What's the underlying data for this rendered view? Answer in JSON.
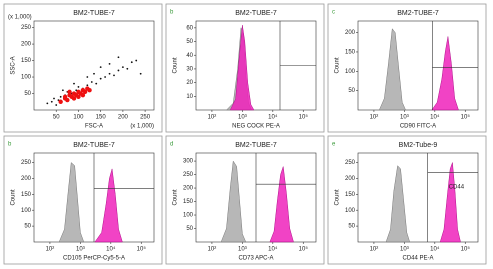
{
  "chart_data": [
    {
      "type": "scatter",
      "title": "BM2-TUBE-7",
      "xlabel": "FSC-A",
      "ylabel": "SSC-A",
      "x_note": "(x 1,000)",
      "y_note": "(x 1,000)",
      "xlim": [
        0,
        270
      ],
      "ylim": [
        0,
        270
      ],
      "xticks": [
        50,
        100,
        150,
        200,
        250
      ],
      "yticks": [
        50,
        100,
        150,
        200,
        250
      ],
      "series": [
        {
          "name": "events",
          "color": "#111111",
          "x": [
            30,
            40,
            45,
            55,
            60,
            70,
            75,
            85,
            95,
            100,
            110,
            120,
            130,
            140,
            150,
            160,
            170,
            180,
            190,
            200,
            210,
            220,
            230,
            150,
            170,
            120,
            135,
            90,
            65,
            50,
            190,
            240
          ],
          "y": [
            20,
            25,
            35,
            30,
            40,
            45,
            55,
            50,
            60,
            70,
            65,
            75,
            85,
            80,
            95,
            100,
            110,
            105,
            120,
            130,
            125,
            145,
            150,
            130,
            140,
            100,
            110,
            80,
            60,
            15,
            160,
            110
          ]
        },
        {
          "name": "gate",
          "color": "#ee1111",
          "x": [
            60,
            70,
            75,
            80,
            85,
            90,
            95,
            100,
            105,
            110,
            115,
            120,
            125,
            90,
            100,
            80,
            110,
            70
          ],
          "y": [
            25,
            35,
            30,
            45,
            40,
            50,
            45,
            55,
            50,
            60,
            55,
            65,
            60,
            35,
            40,
            55,
            45,
            40
          ]
        }
      ]
    },
    {
      "type": "area",
      "letter": "b",
      "title": "BM2-TUBE-7",
      "xlabel": "NEG COCK PE-A",
      "ylabel": "Count",
      "xlog": true,
      "xlim": [
        30,
        262144
      ],
      "ylim": [
        0,
        65
      ],
      "xticks": [
        {
          "value": 100,
          "label": "10²"
        },
        {
          "value": 1000,
          "label": "10³"
        },
        {
          "value": 10000,
          "label": "10⁴"
        },
        {
          "value": 100000,
          "label": "10⁵"
        }
      ],
      "yticks": [
        10,
        20,
        30,
        40,
        50,
        60
      ],
      "series": [
        {
          "name": "isotype",
          "color": "#aaaaaa",
          "x": [
            300,
            500,
            700,
            900,
            1100,
            1300,
            1600,
            2000
          ],
          "values": [
            0,
            5,
            30,
            60,
            55,
            25,
            5,
            0
          ]
        },
        {
          "name": "marker",
          "color": "#ee22bb",
          "x": [
            400,
            600,
            800,
            1000,
            1200,
            1500,
            1900,
            2400
          ],
          "values": [
            0,
            8,
            40,
            62,
            50,
            20,
            4,
            0
          ]
        }
      ]
    },
    {
      "type": "area",
      "letter": "c",
      "title": "BM2-TUBE-7",
      "xlabel": "CD90 FITC-A",
      "ylabel": "Count",
      "xlog": true,
      "xlim": [
        30,
        262144
      ],
      "ylim": [
        0,
        230
      ],
      "xticks": [
        {
          "value": 100,
          "label": "10²"
        },
        {
          "value": 1000,
          "label": "10³"
        },
        {
          "value": 10000,
          "label": "10⁴"
        },
        {
          "value": 100000,
          "label": "10⁵"
        }
      ],
      "yticks": [
        50,
        100,
        150,
        200
      ],
      "series": [
        {
          "name": "isotype",
          "color": "#aaaaaa",
          "x": [
            150,
            220,
            300,
            400,
            500,
            650,
            850,
            1100
          ],
          "values": [
            0,
            30,
            120,
            210,
            200,
            110,
            20,
            0
          ]
        },
        {
          "name": "marker",
          "color": "#ee22bb",
          "x": [
            8000,
            12000,
            17000,
            22000,
            27000,
            35000,
            45000,
            60000
          ],
          "values": [
            0,
            20,
            80,
            150,
            190,
            120,
            30,
            0
          ]
        }
      ]
    },
    {
      "type": "area",
      "letter": "b",
      "title": "BM2-TUBE-7",
      "xlabel": "CD105 PerCP-Cy5-5-A",
      "ylabel": "Count",
      "xlog": true,
      "xlim": [
        30,
        262144
      ],
      "ylim": [
        0,
        280
      ],
      "xticks": [
        {
          "value": 100,
          "label": "10²"
        },
        {
          "value": 1000,
          "label": "10³"
        },
        {
          "value": 10000,
          "label": "10⁴"
        },
        {
          "value": 100000,
          "label": "10⁵"
        }
      ],
      "yticks": [
        50,
        100,
        150,
        200,
        250
      ],
      "series": [
        {
          "name": "isotype",
          "color": "#aaaaaa",
          "x": [
            200,
            300,
            400,
            500,
            650,
            800,
            1000,
            1300
          ],
          "values": [
            0,
            40,
            160,
            250,
            240,
            140,
            30,
            0
          ]
        },
        {
          "name": "marker",
          "color": "#ee22bb",
          "x": [
            3000,
            5000,
            7000,
            9000,
            11000,
            14000,
            18000,
            24000
          ],
          "values": [
            0,
            30,
            120,
            200,
            230,
            150,
            40,
            0
          ]
        }
      ]
    },
    {
      "type": "area",
      "letter": "d",
      "title": "BM2-TUBE-7",
      "xlabel": "CD73 APC-A",
      "ylabel": "Count",
      "xlog": true,
      "xlim": [
        30,
        262144
      ],
      "ylim": [
        0,
        330
      ],
      "xticks": [
        {
          "value": 100,
          "label": "10²"
        },
        {
          "value": 1000,
          "label": "10³"
        },
        {
          "value": 10000,
          "label": "10⁴"
        },
        {
          "value": 100000,
          "label": "10⁵"
        }
      ],
      "yticks": [
        50,
        100,
        150,
        200,
        250,
        300
      ],
      "series": [
        {
          "name": "isotype",
          "color": "#aaaaaa",
          "x": [
            200,
            300,
            400,
            500,
            650,
            800,
            1000,
            1300
          ],
          "values": [
            0,
            50,
            200,
            300,
            280,
            160,
            30,
            0
          ]
        },
        {
          "name": "marker",
          "color": "#ee22bb",
          "x": [
            8000,
            11000,
            14000,
            18000,
            22000,
            28000,
            36000,
            48000
          ],
          "values": [
            0,
            40,
            150,
            250,
            280,
            180,
            50,
            0
          ]
        }
      ]
    },
    {
      "type": "area",
      "letter": "e",
      "title": "BM2-Tube-9",
      "xlabel": "CD44 PE-A",
      "ylabel": "Count",
      "annotation": "CD44",
      "xlog": true,
      "xlim": [
        30,
        262144
      ],
      "ylim": [
        0,
        280
      ],
      "xticks": [
        {
          "value": 100,
          "label": "10²"
        },
        {
          "value": 1000,
          "label": "10³"
        },
        {
          "value": 10000,
          "label": "10⁴"
        },
        {
          "value": 100000,
          "label": "10⁵"
        }
      ],
      "yticks": [
        50,
        100,
        150,
        200,
        250
      ],
      "series": [
        {
          "name": "isotype",
          "color": "#aaaaaa",
          "x": [
            250,
            350,
            450,
            600,
            750,
            950,
            1200,
            1500
          ],
          "values": [
            0,
            40,
            160,
            240,
            230,
            130,
            30,
            0
          ]
        },
        {
          "name": "marker",
          "color": "#ee22bb",
          "x": [
            15000,
            20000,
            26000,
            32000,
            38000,
            46000,
            56000,
            70000
          ],
          "values": [
            0,
            40,
            150,
            230,
            250,
            160,
            40,
            0
          ]
        }
      ]
    }
  ]
}
